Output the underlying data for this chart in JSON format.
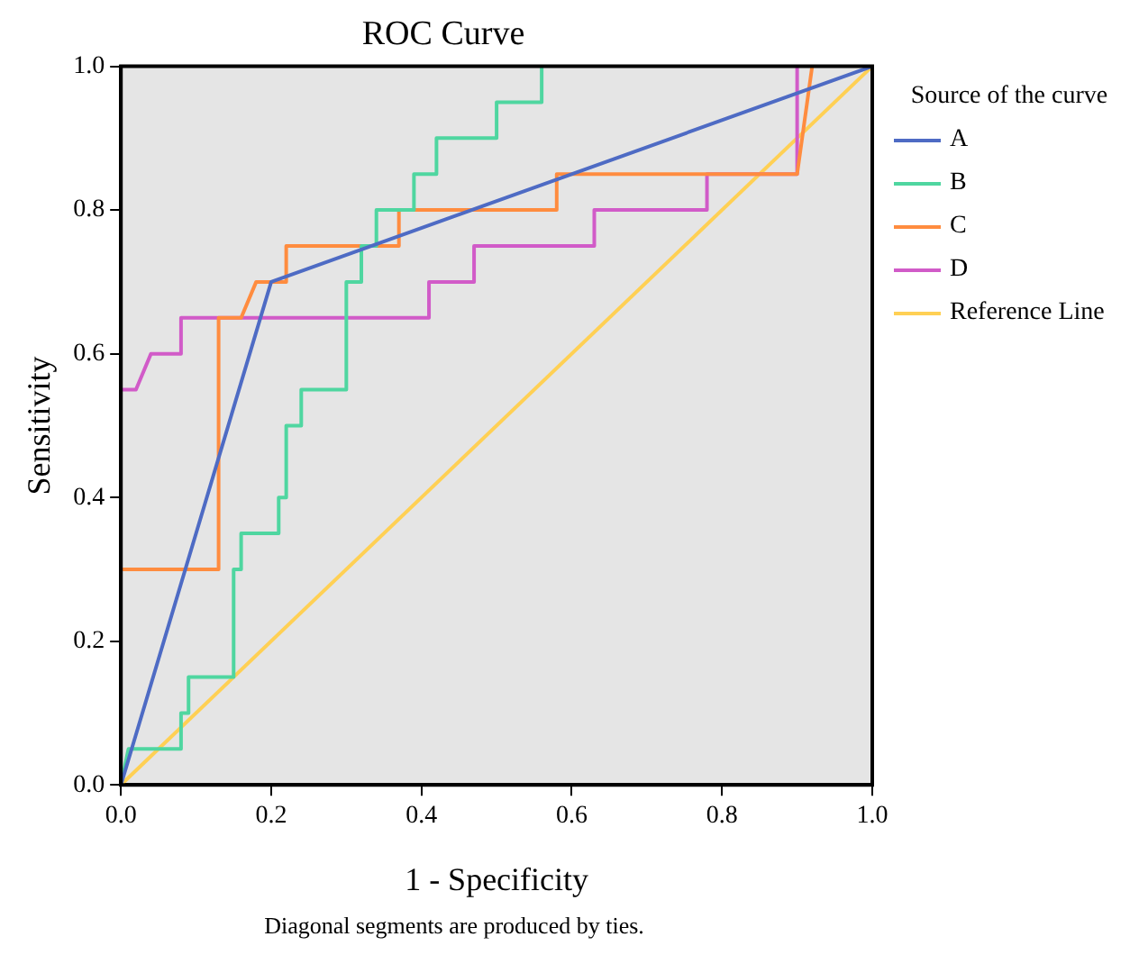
{
  "chart_data": {
    "type": "line",
    "title": "ROC Curve",
    "xlabel": "1 - Specificity",
    "ylabel": "Sensitivity",
    "legend_title": "Source of the curve",
    "legend": "right",
    "grid": false,
    "marker": "none",
    "line_style": "solid",
    "xlim": [
      0,
      1
    ],
    "ylim": [
      0,
      1
    ],
    "xticks": [
      {
        "value": 0,
        "label": "0.0"
      },
      {
        "value": 0.2,
        "label": "0.2"
      },
      {
        "value": 0.4,
        "label": "0.4"
      },
      {
        "value": 0.6,
        "label": "0.6"
      },
      {
        "value": 0.8,
        "label": "0.8"
      },
      {
        "value": 1,
        "label": "1.0"
      }
    ],
    "yticks": [
      {
        "value": 0,
        "label": "0.0"
      },
      {
        "value": 0.2,
        "label": "0.2"
      },
      {
        "value": 0.4,
        "label": "0.4"
      },
      {
        "value": 0.6,
        "label": "0.6"
      },
      {
        "value": 0.8,
        "label": "0.8"
      },
      {
        "value": 1,
        "label": "1.0"
      }
    ],
    "annotations": [
      "Diagonal segments are produced by ties."
    ],
    "series": [
      {
        "name": "A",
        "color": "#4e6bc4",
        "x": [
          0,
          0.2,
          1
        ],
        "values": [
          0,
          0.7,
          1
        ]
      },
      {
        "name": "B",
        "color": "#4fd6a0",
        "x": [
          0,
          0.01,
          0.08,
          0.08,
          0.09,
          0.09,
          0.15,
          0.15,
          0.16,
          0.16,
          0.21,
          0.21,
          0.22,
          0.22,
          0.24,
          0.24,
          0.3,
          0.3,
          0.32,
          0.32,
          0.34,
          0.34,
          0.39,
          0.39,
          0.42,
          0.42,
          0.5,
          0.5,
          0.56,
          0.56
        ],
        "values": [
          0,
          0.05,
          0.05,
          0.1,
          0.1,
          0.15,
          0.15,
          0.3,
          0.3,
          0.35,
          0.35,
          0.4,
          0.4,
          0.5,
          0.5,
          0.55,
          0.55,
          0.7,
          0.7,
          0.75,
          0.75,
          0.8,
          0.8,
          0.85,
          0.85,
          0.9,
          0.9,
          0.95,
          0.95,
          1
        ]
      },
      {
        "name": "C",
        "color": "#ff8c3f",
        "x": [
          0,
          0.13,
          0.13,
          0.16,
          0.18,
          0.22,
          0.22,
          0.37,
          0.37,
          0.58,
          0.58,
          0.9,
          0.92
        ],
        "values": [
          0.3,
          0.3,
          0.65,
          0.65,
          0.7,
          0.7,
          0.75,
          0.75,
          0.8,
          0.8,
          0.85,
          0.85,
          1
        ]
      },
      {
        "name": "D",
        "color": "#d15bc8",
        "x": [
          0,
          0.02,
          0.04,
          0.08,
          0.08,
          0.41,
          0.41,
          0.47,
          0.47,
          0.63,
          0.63,
          0.78,
          0.78,
          0.9,
          0.9
        ],
        "values": [
          0.55,
          0.55,
          0.6,
          0.6,
          0.65,
          0.65,
          0.7,
          0.7,
          0.75,
          0.75,
          0.8,
          0.8,
          0.85,
          0.85,
          1
        ]
      },
      {
        "name": "Reference Line",
        "color": "#ffd054",
        "x": [
          0,
          1
        ],
        "values": [
          0,
          1
        ]
      }
    ]
  }
}
